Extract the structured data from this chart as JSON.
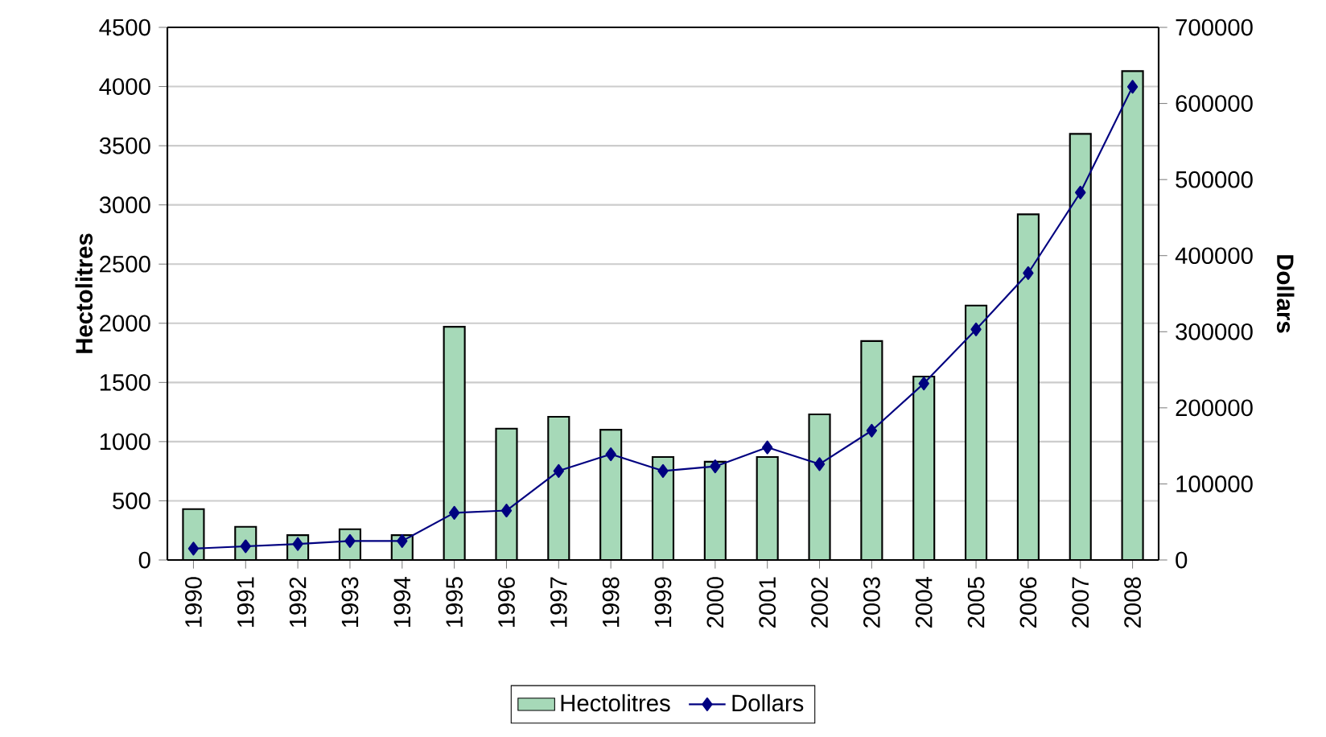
{
  "chart_data": {
    "type": "bar",
    "categories": [
      "1990",
      "1991",
      "1992",
      "1993",
      "1994",
      "1995",
      "1996",
      "1997",
      "1998",
      "1999",
      "2000",
      "2001",
      "2002",
      "2003",
      "2004",
      "2005",
      "2006",
      "2007",
      "2008"
    ],
    "series": [
      {
        "name": "Hectolitres",
        "color": "#a6d9b8",
        "values": [
          430,
          280,
          210,
          260,
          210,
          1970,
          1110,
          1210,
          1100,
          870,
          830,
          870,
          1230,
          1850,
          1550,
          2150,
          2920,
          3600,
          4130
        ]
      },
      {
        "name": "Dollars",
        "type": "line",
        "axis": "y2",
        "color": "#000080",
        "values": [
          15000,
          18000,
          21000,
          25000,
          25000,
          62000,
          65000,
          117000,
          139000,
          117000,
          123000,
          148000,
          126000,
          170000,
          232000,
          303000,
          377000,
          483000,
          622000
        ]
      }
    ],
    "ylabel": "Hectolitres",
    "y2label": "Dollars",
    "ylim": [
      0,
      4500
    ],
    "yticks": [
      0,
      500,
      1000,
      1500,
      2000,
      2500,
      3000,
      3500,
      4000,
      4500
    ],
    "y2lim": [
      0,
      700000
    ],
    "y2ticks": [
      0,
      100000,
      200000,
      300000,
      400000,
      500000,
      600000,
      700000
    ],
    "grid": "y",
    "legend": "bottom",
    "marker": "diamond"
  }
}
